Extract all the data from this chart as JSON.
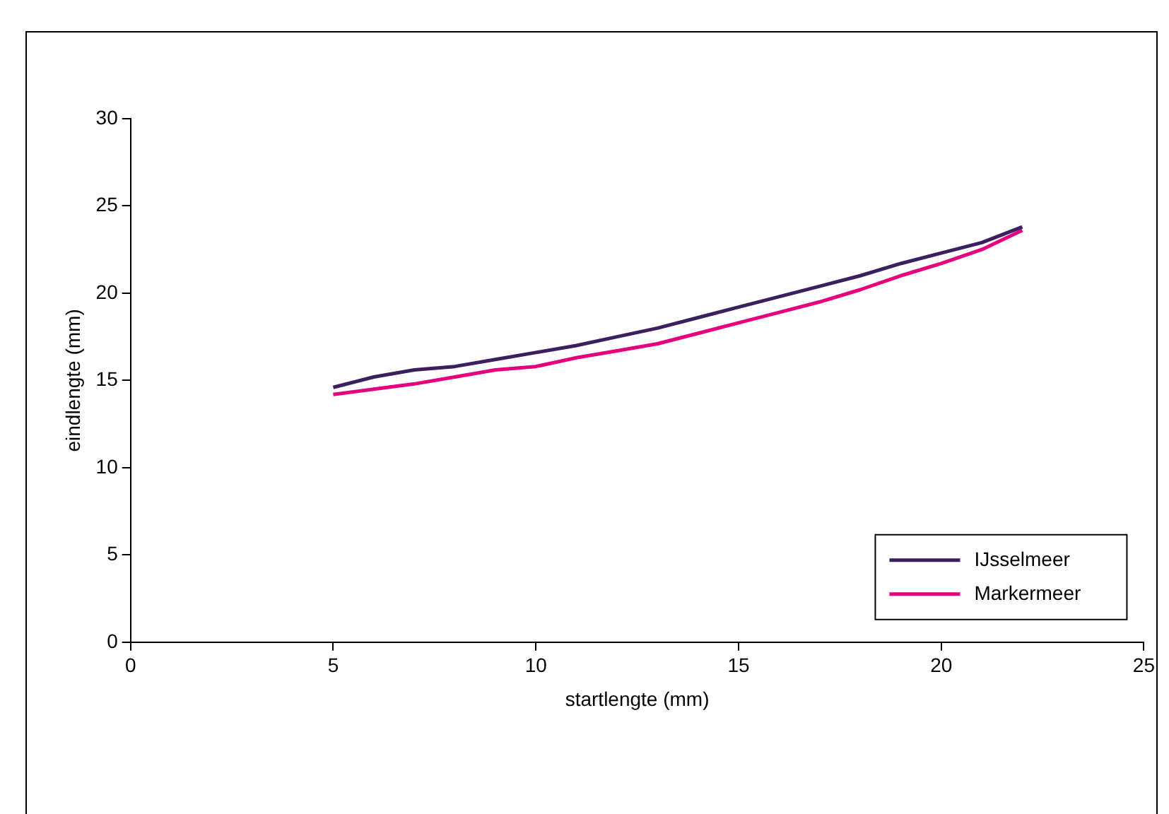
{
  "chart_data": {
    "type": "line",
    "xlabel": "startlengte (mm)",
    "ylabel": "eindlengte (mm)",
    "x": [
      5,
      6,
      7,
      8,
      9,
      10,
      11,
      12,
      13,
      14,
      15,
      16,
      17,
      18,
      19,
      20,
      21,
      22
    ],
    "series": [
      {
        "name": "IJsselmeer",
        "color": "#3b1f5e",
        "values": [
          14.6,
          15.2,
          15.6,
          15.8,
          16.2,
          16.6,
          17.0,
          17.5,
          18.0,
          18.6,
          19.2,
          19.8,
          20.4,
          21.0,
          21.7,
          22.3,
          22.9,
          23.8
        ]
      },
      {
        "name": "Markermeer",
        "color": "#e6007e",
        "values": [
          14.2,
          14.5,
          14.8,
          15.2,
          15.6,
          15.8,
          16.3,
          16.7,
          17.1,
          17.7,
          18.3,
          18.9,
          19.5,
          20.2,
          21.0,
          21.7,
          22.5,
          23.6
        ]
      }
    ],
    "xlim": [
      0,
      25
    ],
    "xticks": [
      0,
      5,
      10,
      15,
      20,
      25
    ],
    "ylim": [
      0,
      30
    ],
    "yticks": [
      0,
      5,
      10,
      15,
      20,
      25,
      30
    ],
    "grid": false,
    "legend": "bottom right",
    "marker": "none",
    "line_style": "solid"
  }
}
